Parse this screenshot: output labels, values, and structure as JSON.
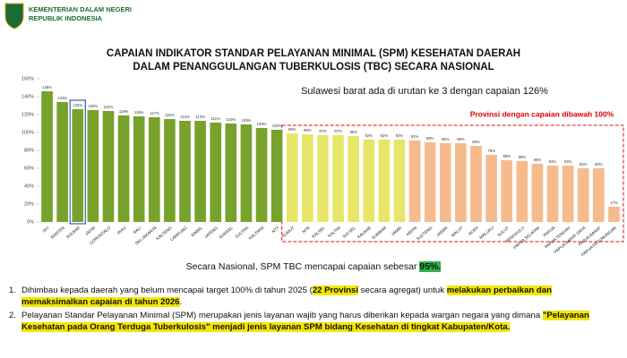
{
  "header": {
    "org_line1": "KEMENTERIAN DALAM NEGERI",
    "org_line2": "REPUBLIK INDONESIA"
  },
  "chart_data": {
    "type": "bar",
    "title": "CAPAIAN INDIKATOR STANDAR PELAYANAN MINIMAL (SPM) KESEHATAN DAERAH",
    "subtitle": "DALAM PENANGGULANGAN TUBERKULOSIS (TBC) SECARA NASIONAL",
    "annotation": "Sulawesi barat ada di urutan ke 3 dengan capaian 126%",
    "region_label": "Provinsi dengan capaian dibawah 100%",
    "categories": [
      "DIY",
      "BANTEN",
      "SULBAR",
      "JATIM",
      "GORONTALO",
      "RIAU",
      "BALI",
      "DKI JAKARTA",
      "KALTENG",
      "LAMPUNG",
      "BABEL",
      "JATENG",
      "SUMSEL",
      "SULTRA",
      "KALTARA",
      "NTT",
      "SUMUT",
      "NTB",
      "KALSEL",
      "KALTIM",
      "SULSEL",
      "KALBAR",
      "SUMBAR",
      "JAMBI",
      "KEPRI",
      "SULTENG",
      "JABAR",
      "MALUT",
      "ACEH",
      "MALUKU",
      "SULUT",
      "BENGKULU",
      "PAPUA SELATAN",
      "PAPUA",
      "PAPUA TENGAH",
      "PAPUA BARAT DAYA",
      "PAPUA BARAT",
      "PAPUA PEGUNUNGAN"
    ],
    "values": [
      146,
      134,
      126,
      125,
      124,
      119,
      118,
      117,
      115,
      113,
      113,
      111,
      110,
      109,
      105,
      103,
      99,
      98,
      97,
      97,
      96,
      92,
      92,
      92,
      91,
      89,
      88,
      88,
      85,
      75,
      69,
      68,
      65,
      63,
      63,
      60,
      60,
      17
    ],
    "value_labels": [
      "146%",
      "134%",
      "126%",
      "125%",
      "124%",
      "119%",
      "118%",
      "117%",
      "115%",
      "113%",
      "113%",
      "111%",
      "110%",
      "109%",
      "105%",
      "103%",
      "99%",
      "98%",
      "97%",
      "97%",
      "96%",
      "92%",
      "92%",
      "92%",
      "91%",
      "89%",
      "88%",
      "88%",
      "85%",
      "75%",
      "69%",
      "68%",
      "65%",
      "63%",
      "63%",
      "60%",
      "60%",
      "17%"
    ],
    "colors": [
      "#77a22b",
      "#77a22b",
      "#77a22b",
      "#77a22b",
      "#77a22b",
      "#77a22b",
      "#77a22b",
      "#77a22b",
      "#77a22b",
      "#77a22b",
      "#77a22b",
      "#77a22b",
      "#77a22b",
      "#77a22b",
      "#77a22b",
      "#77a22b",
      "#e8e66a",
      "#e8e66a",
      "#e8e66a",
      "#e8e66a",
      "#e8e66a",
      "#e8e66a",
      "#e8e66a",
      "#e8e66a",
      "#f6bb8d",
      "#f6bb8d",
      "#f6bb8d",
      "#f6bb8d",
      "#f6bb8d",
      "#f6bb8d",
      "#f6bb8d",
      "#f6bb8d",
      "#f6bb8d",
      "#f6bb8d",
      "#f6bb8d",
      "#f6bb8d",
      "#f6bb8d",
      "#f6bb8d"
    ],
    "highlight_index": 2,
    "region_start_index": 16,
    "ylim": [
      0,
      160
    ],
    "yticks": [
      {
        "value": 0,
        "label": "0%"
      },
      {
        "value": 20,
        "label": "20%"
      },
      {
        "value": 40,
        "label": "40%"
      },
      {
        "value": 60,
        "label": "60%"
      },
      {
        "value": 80,
        "label": "80%"
      },
      {
        "value": 100,
        "label": "100%"
      },
      {
        "value": 120,
        "label": "120%"
      },
      {
        "value": 140,
        "label": "140%"
      },
      {
        "value": 160,
        "label": "160%"
      }
    ],
    "grid": false
  },
  "national": {
    "text": "Secara Nasional, SPM TBC mencapai capaian sebesar ",
    "highlight": "95%."
  },
  "notes": [
    {
      "number": "1.",
      "parts": [
        {
          "text": "Dihimbau kepada daerah yang belum mencapai target 100% di tahun 2025 (",
          "style": "plain"
        },
        {
          "text": "22 Provinsi",
          "style": "highlight"
        },
        {
          "text": " secara agregat) untuk ",
          "style": "plain"
        },
        {
          "text": "melakukan perbaikan dan memaksimalkan capaian di tahun 2026",
          "style": "highlight"
        },
        {
          "text": ".",
          "style": "plain"
        }
      ]
    },
    {
      "number": "2.",
      "parts": [
        {
          "text": "Pelayanan Standar Pelayanan Minimal (SPM) merupakan jenis layanan wajib yang harus diberikan kepada wargan negara yang dimana ",
          "style": "plain"
        },
        {
          "text": "\"Pelayanan Kesehatan pada Orang Terduga Tuberkulosis\" menjadi jenis layanan SPM bidang Kesehatan di tingkat Kabupaten/Kota.",
          "style": "highlight"
        }
      ]
    }
  ]
}
